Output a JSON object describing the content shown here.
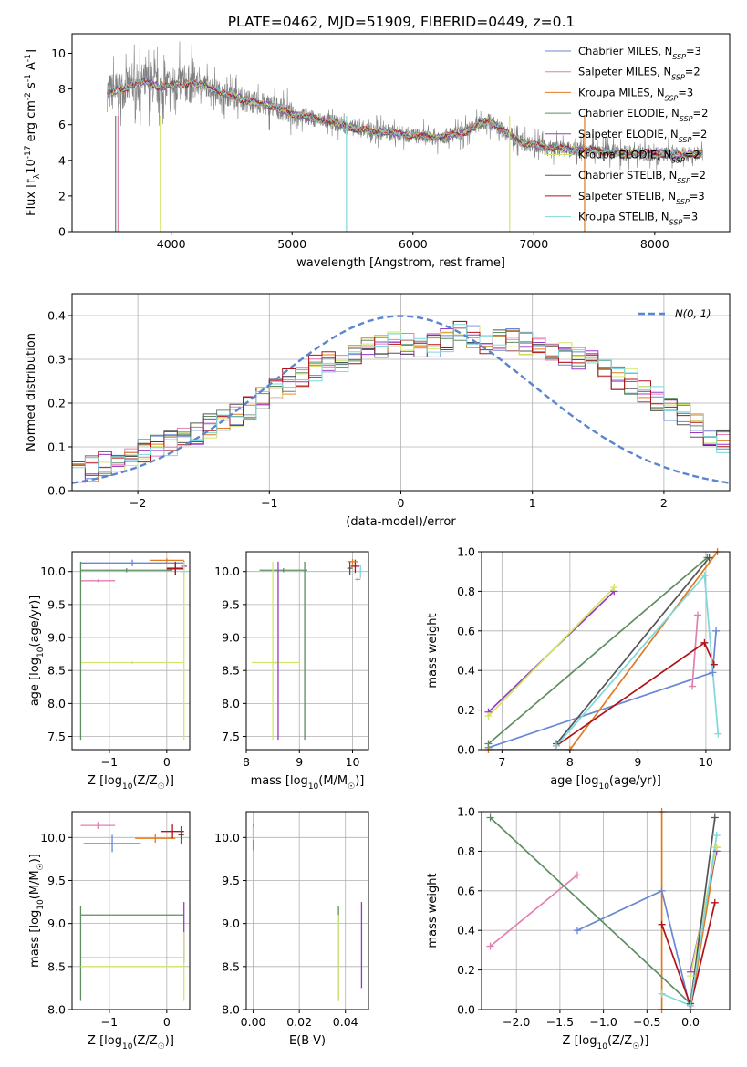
{
  "figure": {
    "title": "PLATE=0462, MJD=51909, FIBERID=0449, z=0.1",
    "colors": {
      "Chabrier MILES": "#6688d6",
      "Salpeter MILES": "#e27fb2",
      "Kroupa MILES": "#e07b20",
      "Chabrier ELODIE": "#5e8e62",
      "Salpeter ELODIE": "#9a38c8",
      "Kroupa ELODIE": "#d3e66a",
      "Chabrier STELIB": "#555555",
      "Salpeter STELIB": "#b01418",
      "Kroupa STELIB": "#7fd8dc",
      "data": "#808080",
      "normal": "#5b85d0"
    }
  },
  "chart_data": [
    {
      "id": "spectrum",
      "type": "line",
      "xlabel": "wavelength [Angstrom, rest frame]",
      "ylabel": "Flux [f_λ10^-17 erg cm^-2 s^-1 A^-1]",
      "xlim": [
        3180,
        8620
      ],
      "ylim": [
        0,
        11.1
      ],
      "xticks": [
        4000,
        5000,
        6000,
        7000,
        8000
      ],
      "yticks": [
        0,
        2,
        4,
        6,
        8,
        10
      ],
      "grid": false,
      "legend_position": "right",
      "data_trend": {
        "x": [
          3470,
          3600,
          3700,
          3800,
          3900,
          4000,
          4100,
          4200,
          4300,
          4400,
          4500,
          4600,
          4700,
          4800,
          4900,
          5000,
          5100,
          5200,
          5300,
          5400,
          5500,
          5600,
          5700,
          5800,
          5900,
          6000,
          6100,
          6200,
          6300,
          6400,
          6500,
          6560,
          6620,
          6700,
          6800,
          6900,
          7000,
          7100,
          7200,
          7300,
          7400,
          7600,
          7800,
          8000,
          8200,
          8400
        ],
        "y": [
          7.8,
          8.0,
          8.3,
          8.4,
          8.1,
          8.2,
          8.3,
          8.3,
          8.2,
          7.8,
          7.6,
          7.4,
          7.2,
          7.1,
          6.9,
          6.6,
          6.5,
          6.3,
          6.2,
          6.0,
          5.8,
          5.7,
          5.6,
          5.6,
          5.5,
          5.4,
          5.3,
          5.3,
          5.4,
          5.5,
          5.8,
          6.1,
          6.2,
          5.9,
          5.4,
          5.0,
          4.9,
          4.7,
          4.7,
          4.6,
          4.6,
          4.5,
          4.4,
          4.4,
          4.3,
          4.4
        ]
      },
      "series": [
        {
          "name": "Chabrier MILES",
          "nssp": "3"
        },
        {
          "name": "Salpeter MILES",
          "nssp": "2"
        },
        {
          "name": "Kroupa MILES",
          "nssp": "3"
        },
        {
          "name": "Chabrier ELODIE",
          "nssp": "2"
        },
        {
          "name": "Salpeter ELODIE",
          "nssp": "2"
        },
        {
          "name": "Kroupa ELODIE",
          "nssp": "2"
        },
        {
          "name": "Chabrier STELIB",
          "nssp": "2"
        },
        {
          "name": "Salpeter STELIB",
          "nssp": "3"
        },
        {
          "name": "Kroupa STELIB",
          "nssp": "3"
        }
      ]
    },
    {
      "id": "residuals",
      "type": "line",
      "xlabel": "(data-model)/error",
      "ylabel": "Normed distribution",
      "xlim": [
        -2.5,
        2.5
      ],
      "ylim": [
        0,
        0.45
      ],
      "xticks": [
        -2,
        -1,
        0,
        1,
        2
      ],
      "yticks": [
        0.0,
        0.1,
        0.2,
        0.3,
        0.4
      ],
      "grid": true,
      "legend_position": "top-right",
      "legend": "N(0, 1)",
      "bin_width": 0.1,
      "base_hist": [
        0.04,
        0.05,
        0.06,
        0.07,
        0.08,
        0.09,
        0.1,
        0.11,
        0.12,
        0.13,
        0.15,
        0.16,
        0.17,
        0.19,
        0.21,
        0.23,
        0.25,
        0.26,
        0.28,
        0.29,
        0.3,
        0.31,
        0.32,
        0.33,
        0.34,
        0.34,
        0.33,
        0.33,
        0.34,
        0.36,
        0.35,
        0.33,
        0.34,
        0.34,
        0.34,
        0.33,
        0.32,
        0.31,
        0.3,
        0.29,
        0.27,
        0.26,
        0.25,
        0.23,
        0.21,
        0.19,
        0.17,
        0.15,
        0.13,
        0.11,
        0.1,
        0.09,
        0.08,
        0.07,
        0.07,
        0.06,
        0.06,
        0.05,
        0.04,
        0.04
      ]
    },
    {
      "id": "age_vs_Z",
      "type": "scatter",
      "xlabel": "Z [log10(Z/Z☉)]",
      "ylabel": "age  [log10(age/yr)]",
      "xlim": [
        -1.65,
        0.4
      ],
      "ylim": [
        7.3,
        10.3
      ],
      "xticks": [
        -1,
        0
      ],
      "yticks": [
        7.5,
        8.0,
        8.5,
        9.0,
        9.5,
        10.0
      ],
      "grid": true,
      "points": [
        {
          "series": "Chabrier MILES",
          "x": -0.6,
          "y": 10.13,
          "xerr": 0.9,
          "yerr": 0.05
        },
        {
          "series": "Salpeter MILES",
          "x": -1.2,
          "y": 9.86,
          "xerr": 0.3,
          "yerr": 0.02
        },
        {
          "series": "Kroupa MILES",
          "x": 0.0,
          "y": 10.17,
          "xerr": 0.3,
          "yerr": 0.03
        },
        {
          "series": "Chabrier ELODIE",
          "x": -0.7,
          "y": 10.02,
          "xerr": 0.8,
          "yerr": 0.03
        },
        {
          "series": "Salpeter ELODIE",
          "x": 0.3,
          "y": 10.08,
          "xerr": 0.05,
          "yerr": 0.08
        },
        {
          "series": "Kroupa ELODIE",
          "x": -0.6,
          "y": 8.62,
          "xerr": 0.9,
          "yerr": 0.02
        },
        {
          "series": "Chabrier STELIB",
          "x": 0.15,
          "y": 10.05,
          "xerr": 0.15,
          "yerr": 0.1
        },
        {
          "series": "Salpeter STELIB",
          "x": 0.15,
          "y": 10.04,
          "xerr": 0.15,
          "yerr": 0.1
        },
        {
          "series": "Kroupa STELIB",
          "x": 0.3,
          "y": 10.0,
          "xerr": 0.05,
          "yerr": 0.1
        },
        {
          "series": "Chabrier ELODIE",
          "x": -1.5,
          "y": 8.8,
          "xerr": 0.0,
          "yerr": 1.35
        },
        {
          "series": "Kroupa ELODIE",
          "x": 0.3,
          "y": 8.8,
          "xerr": 0.0,
          "yerr": 1.35
        }
      ]
    },
    {
      "id": "age_vs_mass",
      "type": "scatter",
      "xlabel": "mass [log10(M/M☉)]",
      "ylabel": "",
      "xlim": [
        8.0,
        10.3
      ],
      "ylim": [
        7.3,
        10.3
      ],
      "xticks": [
        8,
        9,
        10
      ],
      "yticks": [
        7.5,
        8.0,
        8.5,
        9.0,
        9.5,
        10.0
      ],
      "grid": true,
      "points": [
        {
          "series": "Chabrier ELODIE",
          "x": 8.7,
          "y": 10.02,
          "xerr": 0.45,
          "yerr": 0.03
        },
        {
          "series": "Chabrier ELODIE",
          "x": 9.1,
          "y": 8.8,
          "xerr": 0.0,
          "yerr": 1.35
        },
        {
          "series": "Kroupa ELODIE",
          "x": 8.55,
          "y": 8.62,
          "xerr": 0.45,
          "yerr": 0.02
        },
        {
          "series": "Kroupa ELODIE",
          "x": 8.5,
          "y": 8.8,
          "xerr": 0.0,
          "yerr": 1.35
        },
        {
          "series": "Salpeter ELODIE",
          "x": 8.6,
          "y": 8.8,
          "xerr": 0.0,
          "yerr": 1.35
        },
        {
          "series": "Salpeter STELIB",
          "x": 10.05,
          "y": 10.08,
          "xerr": 0.08,
          "yerr": 0.1
        },
        {
          "series": "Kroupa MILES",
          "x": 10.0,
          "y": 10.15,
          "xerr": 0.1,
          "yerr": 0.04
        },
        {
          "series": "Salpeter MILES",
          "x": 10.1,
          "y": 9.88,
          "xerr": 0.05,
          "yerr": 0.03
        },
        {
          "series": "Chabrier STELIB",
          "x": 9.95,
          "y": 10.05,
          "xerr": 0.05,
          "yerr": 0.1
        },
        {
          "series": "Kroupa STELIB",
          "x": 10.15,
          "y": 10.0,
          "xerr": 0.03,
          "yerr": 0.1
        }
      ]
    },
    {
      "id": "mass_weight_vs_age",
      "type": "line",
      "xlabel": "age  [log10(age/yr)]",
      "ylabel": "mass weight",
      "xlim": [
        6.7,
        10.35
      ],
      "ylim": [
        0,
        1
      ],
      "xticks": [
        7,
        8,
        9,
        10
      ],
      "yticks": [
        0.0,
        0.2,
        0.4,
        0.6,
        0.8,
        1.0
      ],
      "grid": true,
      "series": [
        {
          "name": "Chabrier MILES",
          "x": [
            6.8,
            10.1,
            10.15
          ],
          "y": [
            0.01,
            0.39,
            0.6
          ]
        },
        {
          "name": "Salpeter MILES",
          "x": [
            9.8,
            9.88
          ],
          "y": [
            0.32,
            0.68
          ]
        },
        {
          "name": "Kroupa MILES",
          "x": [
            6.8,
            8.0,
            10.17
          ],
          "y": [
            0.0,
            0.0,
            1.0
          ]
        },
        {
          "name": "Chabrier ELODIE",
          "x": [
            6.8,
            10.02
          ],
          "y": [
            0.03,
            0.97
          ]
        },
        {
          "name": "Salpeter ELODIE",
          "x": [
            6.8,
            8.65
          ],
          "y": [
            0.19,
            0.8
          ]
        },
        {
          "name": "Kroupa ELODIE",
          "x": [
            6.8,
            8.65
          ],
          "y": [
            0.17,
            0.82
          ]
        },
        {
          "name": "Chabrier STELIB",
          "x": [
            7.8,
            10.05
          ],
          "y": [
            0.03,
            0.97
          ]
        },
        {
          "name": "Salpeter STELIB",
          "x": [
            7.8,
            9.98,
            10.12
          ],
          "y": [
            0.02,
            0.54,
            0.43
          ]
        },
        {
          "name": "Kroupa STELIB",
          "x": [
            7.8,
            9.98,
            10.18
          ],
          "y": [
            0.02,
            0.88,
            0.08
          ]
        }
      ]
    },
    {
      "id": "mass_vs_Z",
      "type": "scatter",
      "xlabel": "Z [log10(Z/Z☉)]",
      "ylabel": "mass [log10(M/M☉)]",
      "xlim": [
        -1.65,
        0.4
      ],
      "ylim": [
        8.0,
        10.3
      ],
      "xticks": [
        -1,
        0
      ],
      "yticks": [
        8.0,
        8.5,
        9.0,
        9.5,
        10.0
      ],
      "grid": true,
      "points": [
        {
          "series": "Salpeter MILES",
          "x": -1.2,
          "y": 10.14,
          "xerr": 0.3,
          "yerr": 0.04
        },
        {
          "series": "Chabrier MILES",
          "x": -0.95,
          "y": 9.93,
          "xerr": 0.5,
          "yerr": 0.1
        },
        {
          "series": "Kroupa MILES",
          "x": -0.2,
          "y": 9.99,
          "xerr": 0.35,
          "yerr": 0.05
        },
        {
          "series": "Salpeter STELIB",
          "x": 0.1,
          "y": 10.07,
          "xerr": 0.2,
          "yerr": 0.08
        },
        {
          "series": "Chabrier STELIB",
          "x": 0.25,
          "y": 10.03,
          "xerr": 0.05,
          "yerr": 0.1
        },
        {
          "series": "Chabrier ELODIE",
          "x": -0.6,
          "y": 9.1,
          "xerr": 0.9,
          "yerr": 0.0
        },
        {
          "series": "Chabrier ELODIE",
          "x": -1.5,
          "y": 8.65,
          "xerr": 0.0,
          "yerr": 0.55
        },
        {
          "series": "Salpeter ELODIE",
          "x": -0.6,
          "y": 8.6,
          "xerr": 0.9,
          "yerr": 0.0
        },
        {
          "series": "Salpeter ELODIE",
          "x": 0.3,
          "y": 8.9,
          "xerr": 0.0,
          "yerr": 0.35
        },
        {
          "series": "Kroupa ELODIE",
          "x": -0.6,
          "y": 8.5,
          "xerr": 0.9,
          "yerr": 0.0
        },
        {
          "series": "Kroupa ELODIE",
          "x": 0.3,
          "y": 8.5,
          "xerr": 0.0,
          "yerr": 0.4
        }
      ]
    },
    {
      "id": "mass_vs_EBV",
      "type": "scatter",
      "xlabel": "E(B-V)",
      "ylabel": "",
      "xlim": [
        -0.003,
        0.05
      ],
      "ylim": [
        8.0,
        10.3
      ],
      "xticks": [
        0.0,
        0.02,
        0.04
      ],
      "yticks": [
        8.0,
        8.5,
        9.0,
        9.5,
        10.0
      ],
      "grid": true,
      "points": [
        {
          "series": "Kroupa MILES",
          "x": 0.0,
          "y": 10.0,
          "xerr": 0.0,
          "yerr": 0.15
        },
        {
          "series": "Kroupa STELIB",
          "x": 0.0,
          "y": 10.05,
          "xerr": 0.0,
          "yerr": 0.08
        },
        {
          "series": "Chabrier ELODIE",
          "x": 0.037,
          "y": 8.65,
          "xerr": 0.0,
          "yerr": 0.55
        },
        {
          "series": "Kroupa ELODIE",
          "x": 0.037,
          "y": 8.6,
          "xerr": 0.0,
          "yerr": 0.5
        },
        {
          "series": "Salpeter ELODIE",
          "x": 0.047,
          "y": 8.75,
          "xerr": 0.0,
          "yerr": 0.5
        }
      ]
    },
    {
      "id": "mass_weight_vs_Z",
      "type": "line",
      "xlabel": "Z [log10(Z/Z☉)]",
      "ylabel": "mass weight",
      "xlim": [
        -2.4,
        0.45
      ],
      "ylim": [
        0,
        1
      ],
      "xticks": [
        -2.0,
        -1.5,
        -1.0,
        -0.5,
        0.0
      ],
      "yticks": [
        0.0,
        0.2,
        0.4,
        0.6,
        0.8,
        1.0
      ],
      "grid": true,
      "series": [
        {
          "name": "Chabrier MILES",
          "x": [
            -1.3,
            -0.33,
            0.0
          ],
          "y": [
            0.4,
            0.6,
            0.0
          ]
        },
        {
          "name": "Salpeter MILES",
          "x": [
            -2.3,
            -1.3
          ],
          "y": [
            0.32,
            0.68
          ]
        },
        {
          "name": "Kroupa MILES",
          "x": [
            -0.33,
            -0.33,
            0.0,
            0.3
          ],
          "y": [
            1.0,
            0.0,
            0.0,
            0.82
          ]
        },
        {
          "name": "Chabrier ELODIE",
          "x": [
            -2.3,
            0.0
          ],
          "y": [
            0.97,
            0.03
          ]
        },
        {
          "name": "Salpeter ELODIE",
          "x": [
            0.0,
            0.3
          ],
          "y": [
            0.19,
            0.8
          ]
        },
        {
          "name": "Kroupa ELODIE",
          "x": [
            0.0,
            0.3
          ],
          "y": [
            0.17,
            0.82
          ]
        },
        {
          "name": "Chabrier STELIB",
          "x": [
            0.0,
            0.28
          ],
          "y": [
            0.03,
            0.97
          ]
        },
        {
          "name": "Salpeter STELIB",
          "x": [
            -0.33,
            0.0,
            0.28
          ],
          "y": [
            0.43,
            0.02,
            0.54
          ]
        },
        {
          "name": "Kroupa STELIB",
          "x": [
            -0.33,
            0.0,
            0.3
          ],
          "y": [
            0.08,
            0.02,
            0.88
          ]
        }
      ]
    }
  ]
}
